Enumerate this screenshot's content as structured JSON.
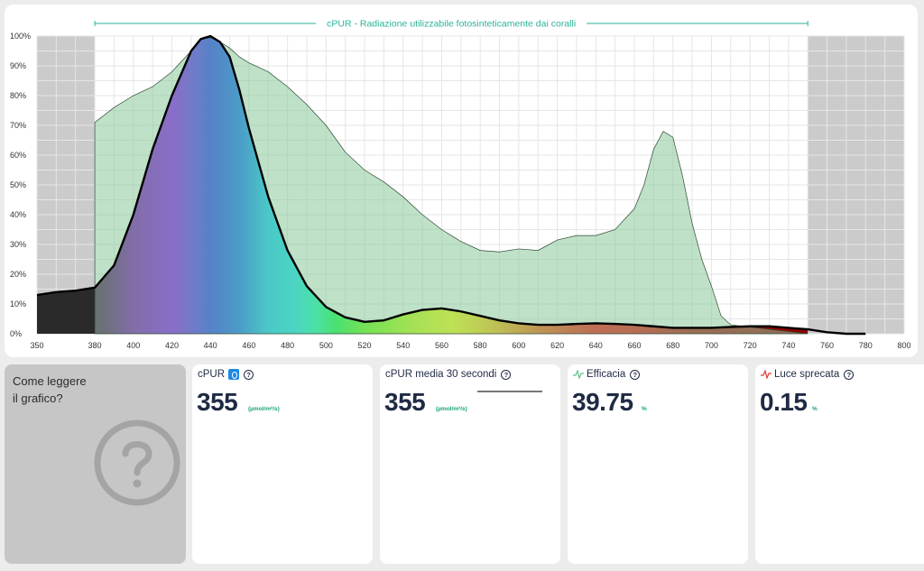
{
  "chart_data": {
    "type": "area",
    "title": "cPUR - Radiazione utilizzabile fotosinteticamente dai coralli",
    "xlim": [
      350,
      800
    ],
    "ylim": [
      0,
      100
    ],
    "x_ticks": [
      350,
      380,
      400,
      420,
      440,
      460,
      480,
      500,
      520,
      540,
      560,
      580,
      600,
      620,
      640,
      660,
      680,
      700,
      720,
      740,
      760,
      780,
      800
    ],
    "y_ticks": [
      "0%",
      "10%",
      "20%",
      "30%",
      "40%",
      "50%",
      "60%",
      "70%",
      "80%",
      "90%",
      "100%"
    ],
    "cpur_range": [
      380,
      750
    ],
    "grid": true,
    "series": [
      {
        "kind": "coral-absorption",
        "color": "#89c89b",
        "x": [
          380,
          390,
          400,
          410,
          420,
          430,
          435,
          440,
          445,
          450,
          455,
          460,
          470,
          480,
          490,
          500,
          510,
          520,
          530,
          540,
          550,
          560,
          570,
          580,
          590,
          600,
          610,
          620,
          630,
          640,
          650,
          660,
          665,
          670,
          675,
          680,
          685,
          690,
          695,
          700,
          705,
          710,
          750
        ],
        "y": [
          71,
          76,
          80,
          83,
          88,
          95,
          99,
          99.5,
          98,
          96,
          93,
          91,
          88,
          83,
          77,
          70,
          61,
          55,
          51,
          46,
          40,
          35,
          31,
          28,
          27.5,
          28.5,
          28,
          31.5,
          33,
          33,
          35,
          42,
          50,
          62,
          68,
          66,
          53,
          37,
          25,
          16,
          6,
          3,
          0
        ]
      },
      {
        "kind": "light-spectrum",
        "color": "#000000",
        "x": [
          350,
          360,
          370,
          380,
          390,
          400,
          410,
          420,
          430,
          435,
          440,
          445,
          450,
          455,
          460,
          470,
          480,
          490,
          500,
          510,
          520,
          530,
          540,
          550,
          560,
          570,
          580,
          590,
          600,
          610,
          620,
          630,
          640,
          650,
          660,
          670,
          680,
          690,
          700,
          710,
          720,
          730,
          740,
          750,
          760,
          770,
          780
        ],
        "y": [
          13,
          14,
          14.5,
          15.5,
          23,
          40,
          62,
          80,
          95,
          99,
          100,
          98,
          93,
          82,
          69,
          46,
          28,
          16,
          9,
          5.5,
          4,
          4.5,
          6.5,
          8,
          8.5,
          7.5,
          6,
          4.5,
          3.5,
          3,
          3,
          3.3,
          3.5,
          3.3,
          3,
          2.5,
          2,
          2,
          2,
          2.3,
          2.5,
          2.5,
          2,
          1.5,
          0.5,
          0,
          0
        ]
      }
    ]
  },
  "help": {
    "text": "Come leggere il grafico?",
    "icon": "question-circle-icon"
  },
  "metrics": [
    {
      "title": "cPUR",
      "value": "355",
      "unit": "(µmol/m²/s)",
      "icon": "droplet-icon",
      "help_icon": "?"
    },
    {
      "title": "cPUR media 30 secondi",
      "value": "355",
      "unit": "(µmol/m²/s)",
      "help_icon": "?"
    },
    {
      "title": "Efficacia",
      "value": "39.75",
      "unit": "%",
      "icon": "pulse-icon",
      "icon_color": "#5cc38a",
      "help_icon": "?"
    },
    {
      "title": "Luce sprecata",
      "value": "0.15",
      "unit": "%",
      "icon": "pulse-icon",
      "icon_color": "#e53935",
      "help_icon": "?"
    }
  ]
}
